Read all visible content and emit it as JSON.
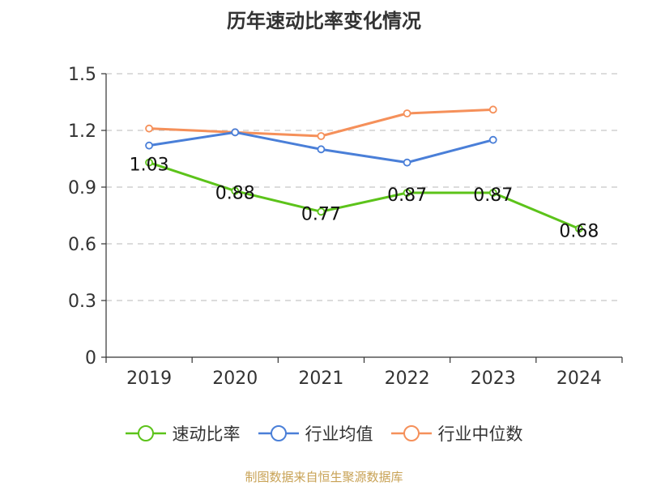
{
  "chart_data": {
    "type": "line",
    "title": "历年速动比率变化情况",
    "categories": [
      "2019",
      "2020",
      "2021",
      "2022",
      "2023",
      "2024"
    ],
    "yticks": [
      "0",
      "0.3",
      "0.6",
      "0.9",
      "1.2",
      "1.5"
    ],
    "ylim": [
      0,
      1.5
    ],
    "grid": true,
    "legend_position": "bottom",
    "series": [
      {
        "name": "速动比率",
        "values": [
          1.03,
          0.88,
          0.77,
          0.87,
          0.87,
          0.68
        ],
        "labels": [
          "1.03",
          "0.88",
          "0.77",
          "0.87",
          "0.87",
          "0.68"
        ],
        "color": "#5cc31a"
      },
      {
        "name": "行业均值",
        "values": [
          1.12,
          1.19,
          1.1,
          1.03,
          1.15,
          null
        ],
        "color": "#4a7fd8"
      },
      {
        "name": "行业中位数",
        "values": [
          1.21,
          1.19,
          1.17,
          1.29,
          1.31,
          null
        ],
        "color": "#f5905a"
      }
    ]
  },
  "footer": {
    "source": "制图数据来自恒生聚源数据库"
  }
}
